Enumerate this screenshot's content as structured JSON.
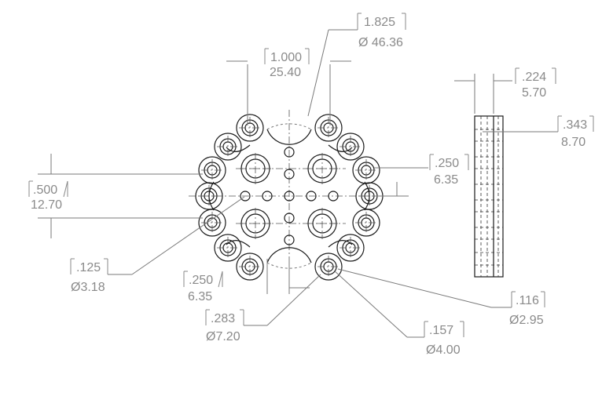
{
  "dimensions": {
    "large_bore": {
      "inch": ".1.825",
      "mm": "Ø 46.36"
    },
    "spacing_top": {
      "inch": "1.000",
      "mm": "25.40"
    },
    "side_thickness": {
      "inch": ".224",
      "mm": "5.70"
    },
    "side_step": {
      "inch": ".343",
      "mm": "8.70"
    },
    "left_height": {
      "inch": ".500",
      "mm": "12.70"
    },
    "right_spacing": {
      "inch": ".250",
      "mm": "6.35"
    },
    "small_hole": {
      "inch": ".125",
      "mm": "Ø3.18"
    },
    "bottom_spacing": {
      "inch": ".250",
      "mm": "6.35"
    },
    "counterbore": {
      "inch": ".283",
      "mm": "Ø7.20"
    },
    "hole_116": {
      "inch": ".116",
      "mm": "Ø2.95"
    },
    "hole_157": {
      "inch": ".157",
      "mm": "Ø4.00"
    }
  },
  "colors": {
    "dimension": "#8a8a8a",
    "part": "#1a1a1a"
  }
}
